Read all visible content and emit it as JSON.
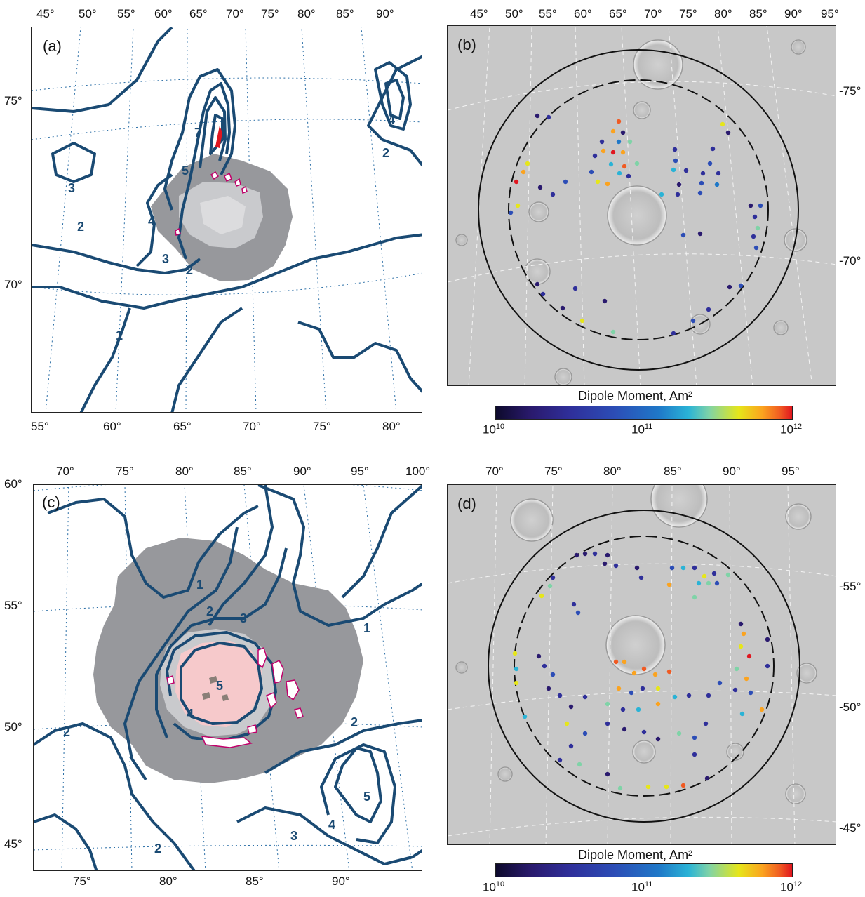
{
  "panels": {
    "a": {
      "label": "(a)",
      "top_ticks": [
        "45°",
        "50°",
        "55°",
        "60°",
        "65°",
        "70°",
        "75°",
        "80°",
        "85°",
        "90°"
      ],
      "bottom_ticks": [
        "55°",
        "60°",
        "65°",
        "70°",
        "75°",
        "80°"
      ],
      "left_ticks": [
        "75°",
        "70°"
      ],
      "contour_labels": [
        "1",
        "2",
        "2",
        "2",
        "3",
        "3",
        "4",
        "4",
        "5",
        "7"
      ]
    },
    "b": {
      "label": "(b)",
      "top_ticks": [
        "45°",
        "50°",
        "55°",
        "60°",
        "65°",
        "70°",
        "75°",
        "80°",
        "85°",
        "90°",
        "95°"
      ],
      "right_ticks": [
        "-75°",
        "-70°"
      ],
      "colorbar": {
        "title": "Dipole Moment, Am²",
        "ticks": [
          {
            "base": "10",
            "exp": "10"
          },
          {
            "base": "10",
            "exp": "11"
          },
          {
            "base": "10",
            "exp": "12"
          }
        ]
      }
    },
    "c": {
      "label": "(c)",
      "top_ticks": [
        "70°",
        "75°",
        "80°",
        "85°",
        "90°",
        "95°",
        "100°"
      ],
      "bottom_ticks": [
        "75°",
        "80°",
        "85°",
        "90°"
      ],
      "left_ticks": [
        "60°",
        "55°",
        "50°",
        "45°"
      ],
      "contour_labels": [
        "1",
        "1",
        "2",
        "2",
        "2",
        "2",
        "3",
        "3",
        "4",
        "4",
        "5",
        "5"
      ]
    },
    "d": {
      "label": "(d)",
      "top_ticks": [
        "70°",
        "75°",
        "80°",
        "85°",
        "90°",
        "95°"
      ],
      "right_ticks": [
        "-55°",
        "-50°",
        "-45°"
      ],
      "colorbar": {
        "title": "Dipole Moment, Am²",
        "ticks": [
          {
            "base": "10",
            "exp": "10"
          },
          {
            "base": "10",
            "exp": "11"
          },
          {
            "base": "10",
            "exp": "12"
          }
        ]
      }
    }
  },
  "colors": {
    "contour": "#1a4a73",
    "grid": "#2a6ea6",
    "anomaly_dark": "#97989c",
    "anomaly_light": "#c9cacd",
    "anomaly_pink": "#f6c9cb",
    "magnetic_outline": "#c0006a"
  }
}
